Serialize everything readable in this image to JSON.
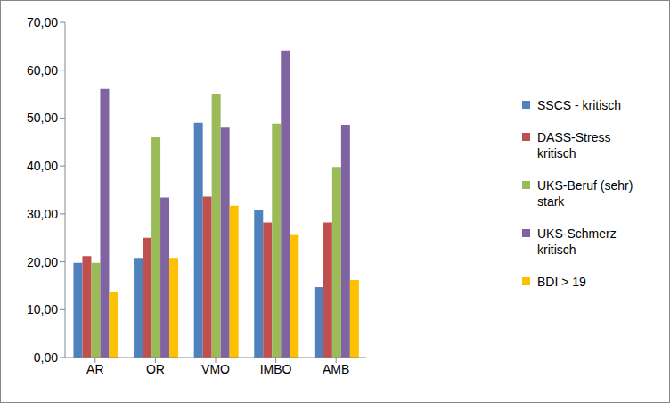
{
  "chart_data": {
    "type": "bar",
    "categories": [
      "AR",
      "OR",
      "VMO",
      "IMBO",
      "AMB"
    ],
    "series": [
      {
        "name": "SSCS - kritisch",
        "color": "#4f81bd",
        "values": [
          19.8,
          20.8,
          49.0,
          30.8,
          14.7
        ]
      },
      {
        "name": "DASS-Stress kritisch",
        "color": "#c0504d",
        "values": [
          21.2,
          25.0,
          33.6,
          28.2,
          28.2
        ]
      },
      {
        "name": "UKS-Beruf (sehr) stark",
        "color": "#9bbb59",
        "values": [
          19.8,
          46.0,
          55.1,
          48.8,
          39.8
        ]
      },
      {
        "name": "UKS-Schmerz kritisch",
        "color": "#8064a2",
        "values": [
          56.1,
          33.4,
          48.0,
          64.1,
          48.6
        ]
      },
      {
        "name": "BDI > 19",
        "color": "#ffc000",
        "values": [
          13.6,
          20.8,
          31.7,
          25.6,
          16.2
        ]
      }
    ],
    "ylim": [
      0,
      70
    ],
    "yticks": [
      {
        "value": 0,
        "label": "0,00"
      },
      {
        "value": 10,
        "label": "10,00"
      },
      {
        "value": 20,
        "label": "20,00"
      },
      {
        "value": 30,
        "label": "30,00"
      },
      {
        "value": 40,
        "label": "40,00"
      },
      {
        "value": 50,
        "label": "50,00"
      },
      {
        "value": 60,
        "label": "60,00"
      },
      {
        "value": 70,
        "label": "70,00"
      }
    ],
    "grid": false,
    "legend": "right"
  }
}
